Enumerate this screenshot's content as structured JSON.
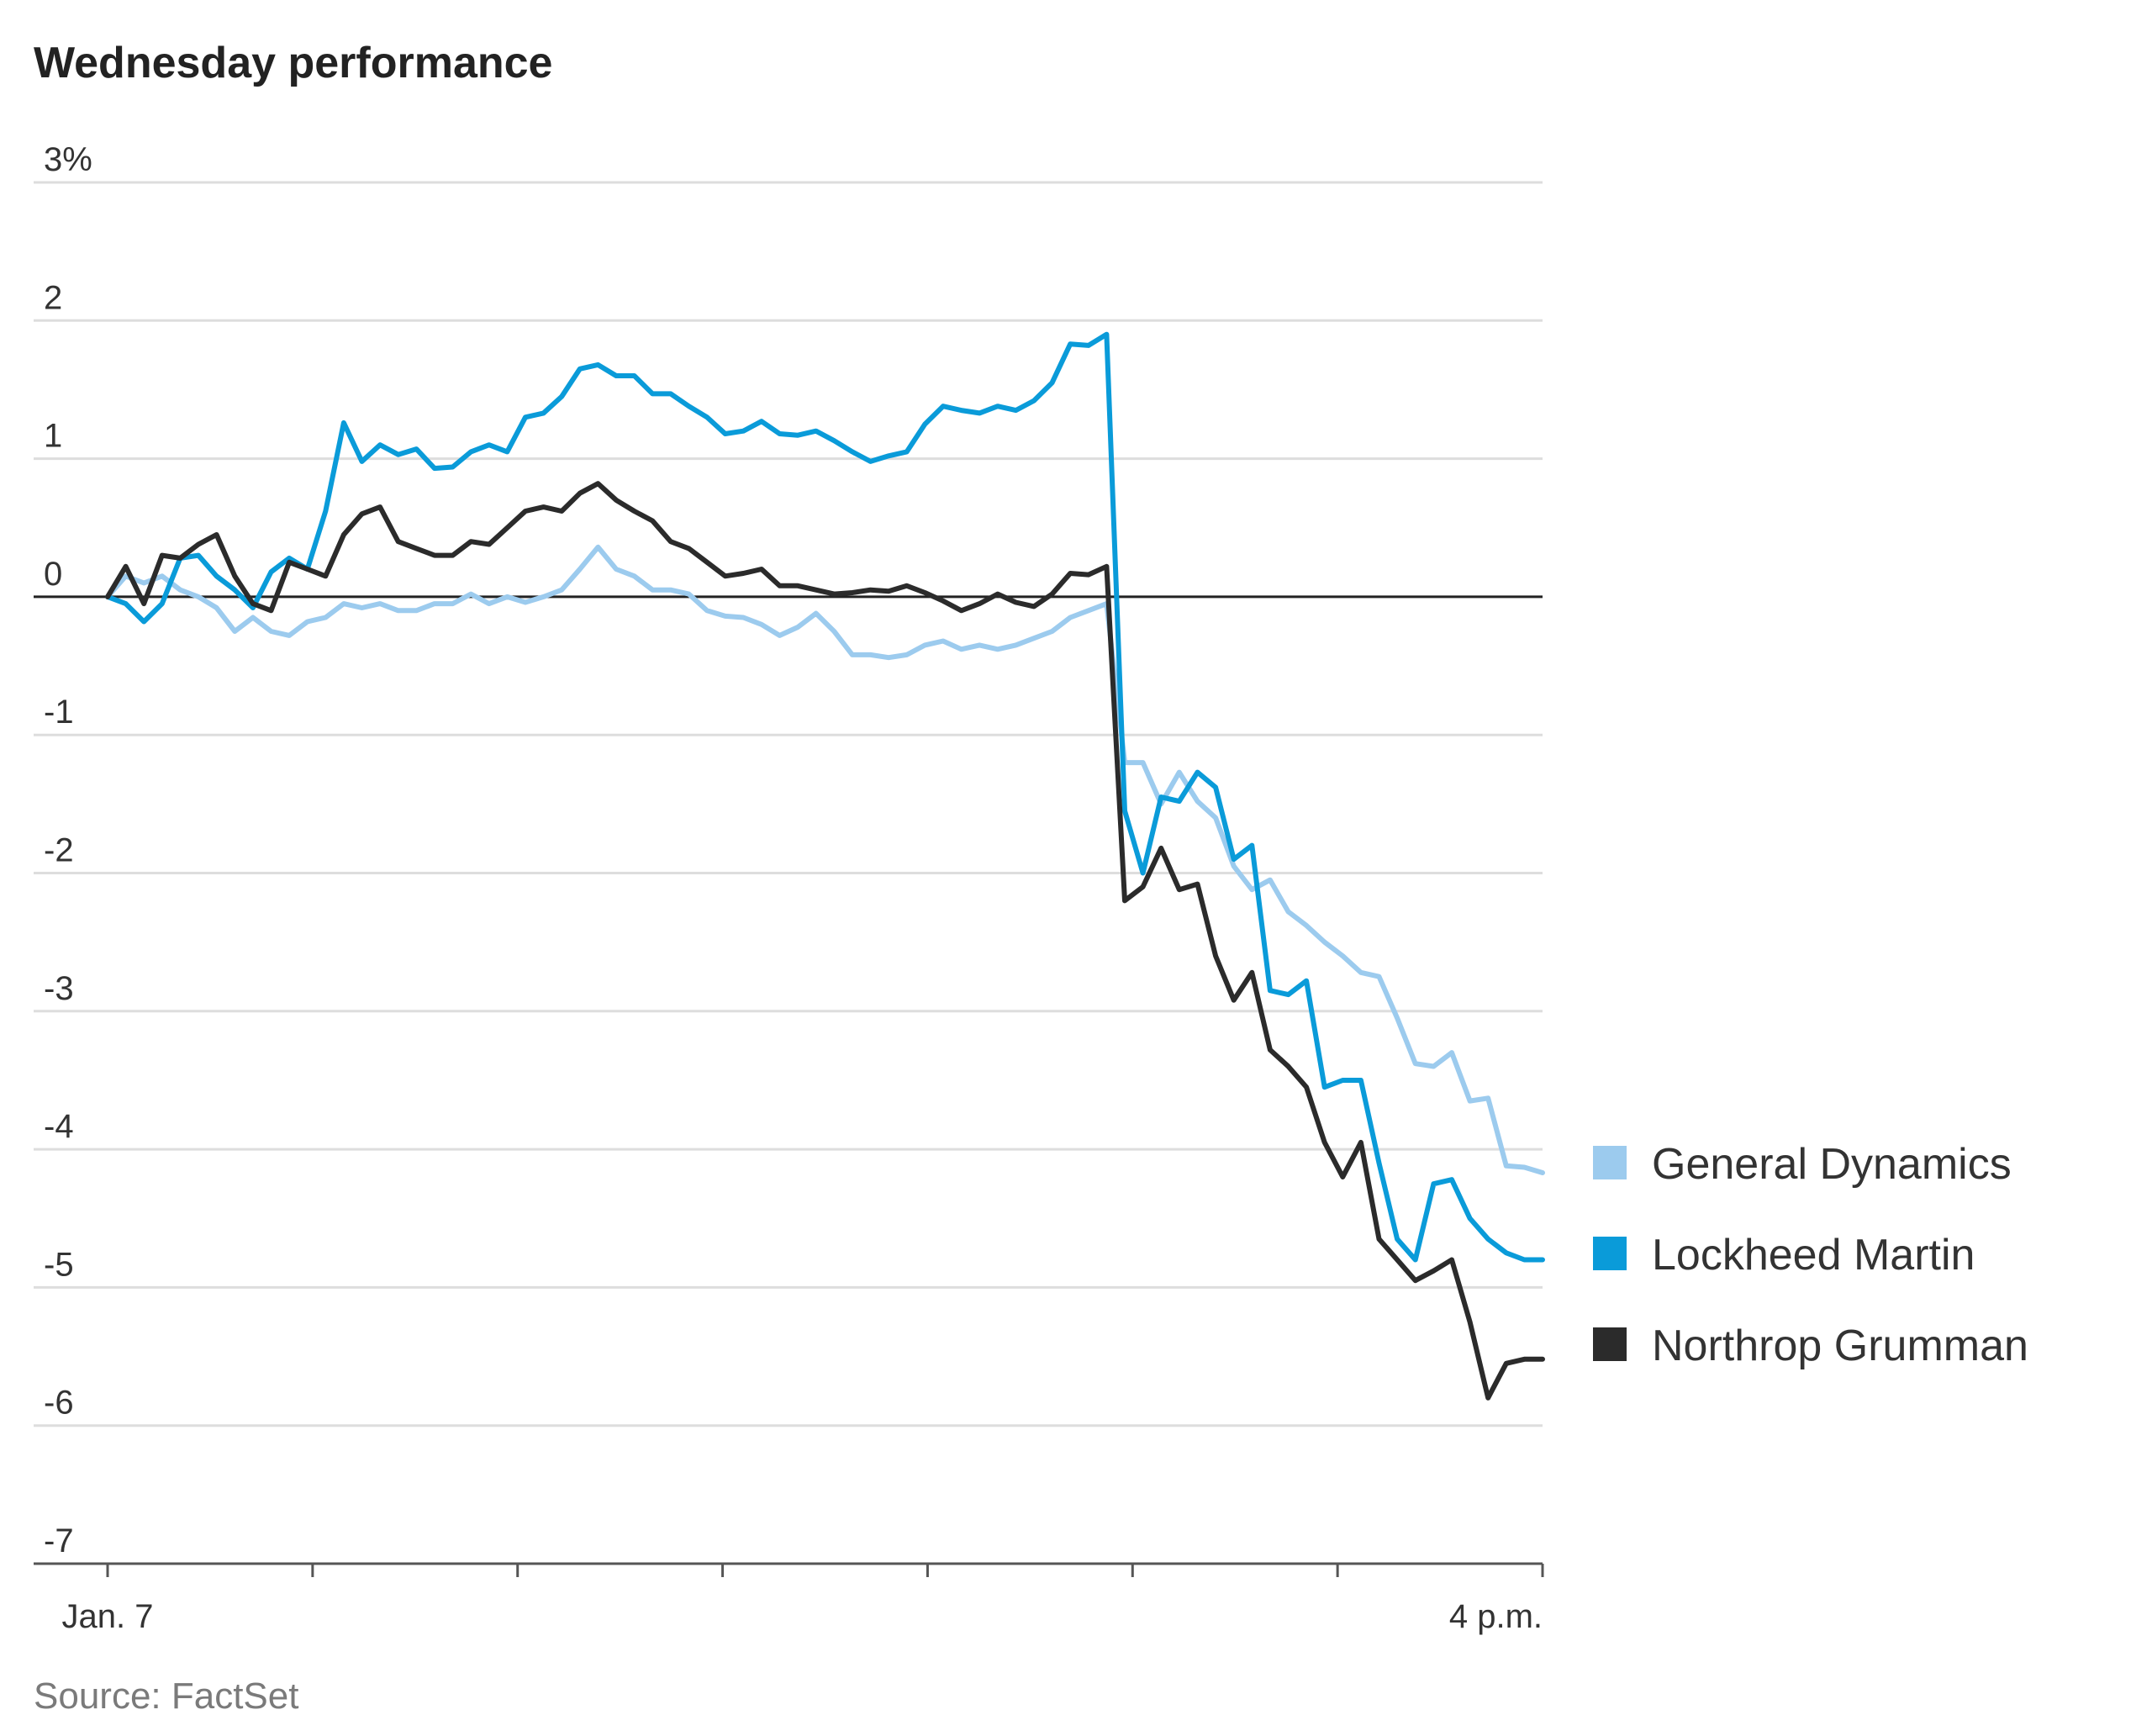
{
  "chart_data": {
    "type": "line",
    "title": "Wednesday performance",
    "source": "Source: FactSet",
    "xlabel": "",
    "ylabel": "",
    "ylim": [
      -7,
      3
    ],
    "y_ticks": [
      {
        "value": 3,
        "label": "3%"
      },
      {
        "value": 2,
        "label": "2"
      },
      {
        "value": 1,
        "label": "1"
      },
      {
        "value": 0,
        "label": "0"
      },
      {
        "value": -1,
        "label": "-1"
      },
      {
        "value": -2,
        "label": "-2"
      },
      {
        "value": -3,
        "label": "-3"
      },
      {
        "value": -4,
        "label": "-4"
      },
      {
        "value": -5,
        "label": "-5"
      },
      {
        "value": -6,
        "label": "-6"
      },
      {
        "value": -7,
        "label": "-7"
      }
    ],
    "x_tick_count": 8,
    "x_labels": [
      {
        "index": 0,
        "label": "Jan. 7"
      },
      {
        "index": 7,
        "label": "4 p.m."
      }
    ],
    "series": [
      {
        "name": "General Dynamics",
        "color": "#9ccbee",
        "values": [
          0.0,
          0.15,
          0.1,
          0.15,
          0.05,
          0.0,
          -0.08,
          -0.25,
          -0.15,
          -0.25,
          -0.28,
          -0.18,
          -0.15,
          -0.05,
          -0.08,
          -0.05,
          -0.1,
          -0.1,
          -0.05,
          -0.05,
          0.02,
          -0.05,
          0.0,
          -0.04,
          0.0,
          0.05,
          0.2,
          0.36,
          0.2,
          0.15,
          0.05,
          0.05,
          0.02,
          -0.1,
          -0.14,
          -0.15,
          -0.2,
          -0.28,
          -0.22,
          -0.12,
          -0.25,
          -0.42,
          -0.42,
          -0.44,
          -0.42,
          -0.35,
          -0.32,
          -0.38,
          -0.35,
          -0.38,
          -0.35,
          -0.3,
          -0.25,
          -0.15,
          -0.1,
          -0.05,
          -1.2,
          -1.2,
          -1.5,
          -1.27,
          -1.48,
          -1.6,
          -1.95,
          -2.12,
          -2.05,
          -2.28,
          -2.38,
          -2.5,
          -2.6,
          -2.72,
          -2.75,
          -3.05,
          -3.38,
          -3.4,
          -3.3,
          -3.65,
          -3.63,
          -4.12,
          -4.13,
          -4.17
        ]
      },
      {
        "name": "Lockheed Martin",
        "color": "#0a9bd9",
        "values": [
          0.0,
          -0.05,
          -0.18,
          -0.05,
          0.28,
          0.3,
          0.15,
          0.05,
          -0.08,
          0.18,
          0.28,
          0.2,
          0.62,
          1.26,
          0.98,
          1.1,
          1.03,
          1.07,
          0.93,
          0.94,
          1.05,
          1.1,
          1.05,
          1.3,
          1.33,
          1.45,
          1.65,
          1.68,
          1.6,
          1.6,
          1.47,
          1.47,
          1.38,
          1.3,
          1.18,
          1.2,
          1.27,
          1.18,
          1.17,
          1.2,
          1.13,
          1.05,
          0.98,
          1.02,
          1.05,
          1.25,
          1.38,
          1.35,
          1.33,
          1.38,
          1.35,
          1.42,
          1.55,
          1.83,
          1.82,
          1.9,
          -1.55,
          -2.0,
          -1.45,
          -1.48,
          -1.27,
          -1.38,
          -1.9,
          -1.8,
          -2.85,
          -2.88,
          -2.78,
          -3.55,
          -3.5,
          -3.5,
          -4.1,
          -4.65,
          -4.8,
          -4.25,
          -4.22,
          -4.5,
          -4.65,
          -4.75,
          -4.8,
          -4.8
        ]
      },
      {
        "name": "Northrop Grumman",
        "color": "#2b2b2b",
        "values": [
          0.0,
          0.22,
          -0.05,
          0.3,
          0.28,
          0.38,
          0.45,
          0.15,
          -0.05,
          -0.1,
          0.25,
          0.2,
          0.15,
          0.45,
          0.6,
          0.65,
          0.4,
          0.35,
          0.3,
          0.3,
          0.4,
          0.38,
          0.5,
          0.62,
          0.65,
          0.62,
          0.75,
          0.82,
          0.7,
          0.62,
          0.55,
          0.4,
          0.35,
          0.25,
          0.15,
          0.17,
          0.2,
          0.08,
          0.08,
          0.05,
          0.02,
          0.03,
          0.05,
          0.04,
          0.08,
          0.03,
          -0.03,
          -0.1,
          -0.05,
          0.02,
          -0.04,
          -0.07,
          0.02,
          0.17,
          0.16,
          0.22,
          -2.2,
          -2.1,
          -1.82,
          -2.12,
          -2.08,
          -2.6,
          -2.92,
          -2.72,
          -3.28,
          -3.4,
          -3.55,
          -3.95,
          -4.2,
          -3.95,
          -4.65,
          -4.8,
          -4.95,
          -4.88,
          -4.8,
          -5.25,
          -5.8,
          -5.55,
          -5.52,
          -5.52
        ]
      }
    ]
  }
}
